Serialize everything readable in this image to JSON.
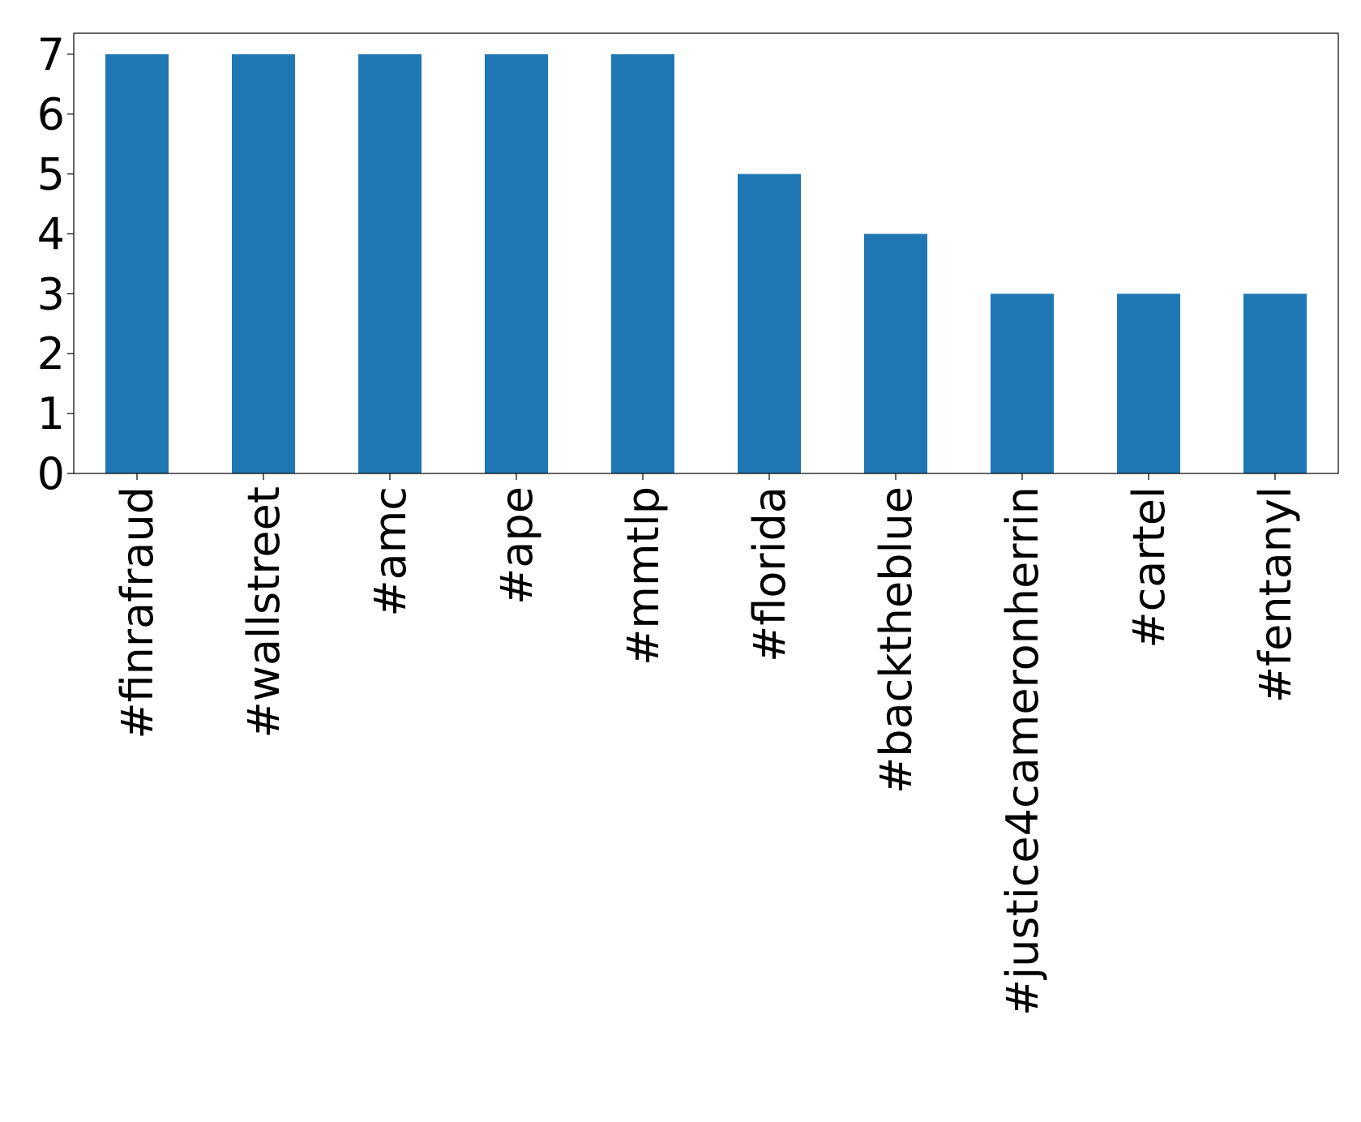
{
  "chart_data": {
    "type": "bar",
    "title": "",
    "xlabel": "",
    "ylabel": "",
    "categories": [
      "#finrafraud",
      "#wallstreet",
      "#amc",
      "#ape",
      "#mmtlp",
      "#florida",
      "#backtheblue",
      "#justice4cameronherrin",
      "#cartel",
      "#fentanyl"
    ],
    "values": [
      7,
      7,
      7,
      7,
      7,
      5,
      4,
      3,
      3,
      3
    ],
    "ylim": [
      0,
      7.35
    ],
    "yticks": [
      0,
      1,
      2,
      3,
      4,
      5,
      6,
      7
    ],
    "bar_color": "#1f77b4",
    "grid": false,
    "legend": "none"
  }
}
